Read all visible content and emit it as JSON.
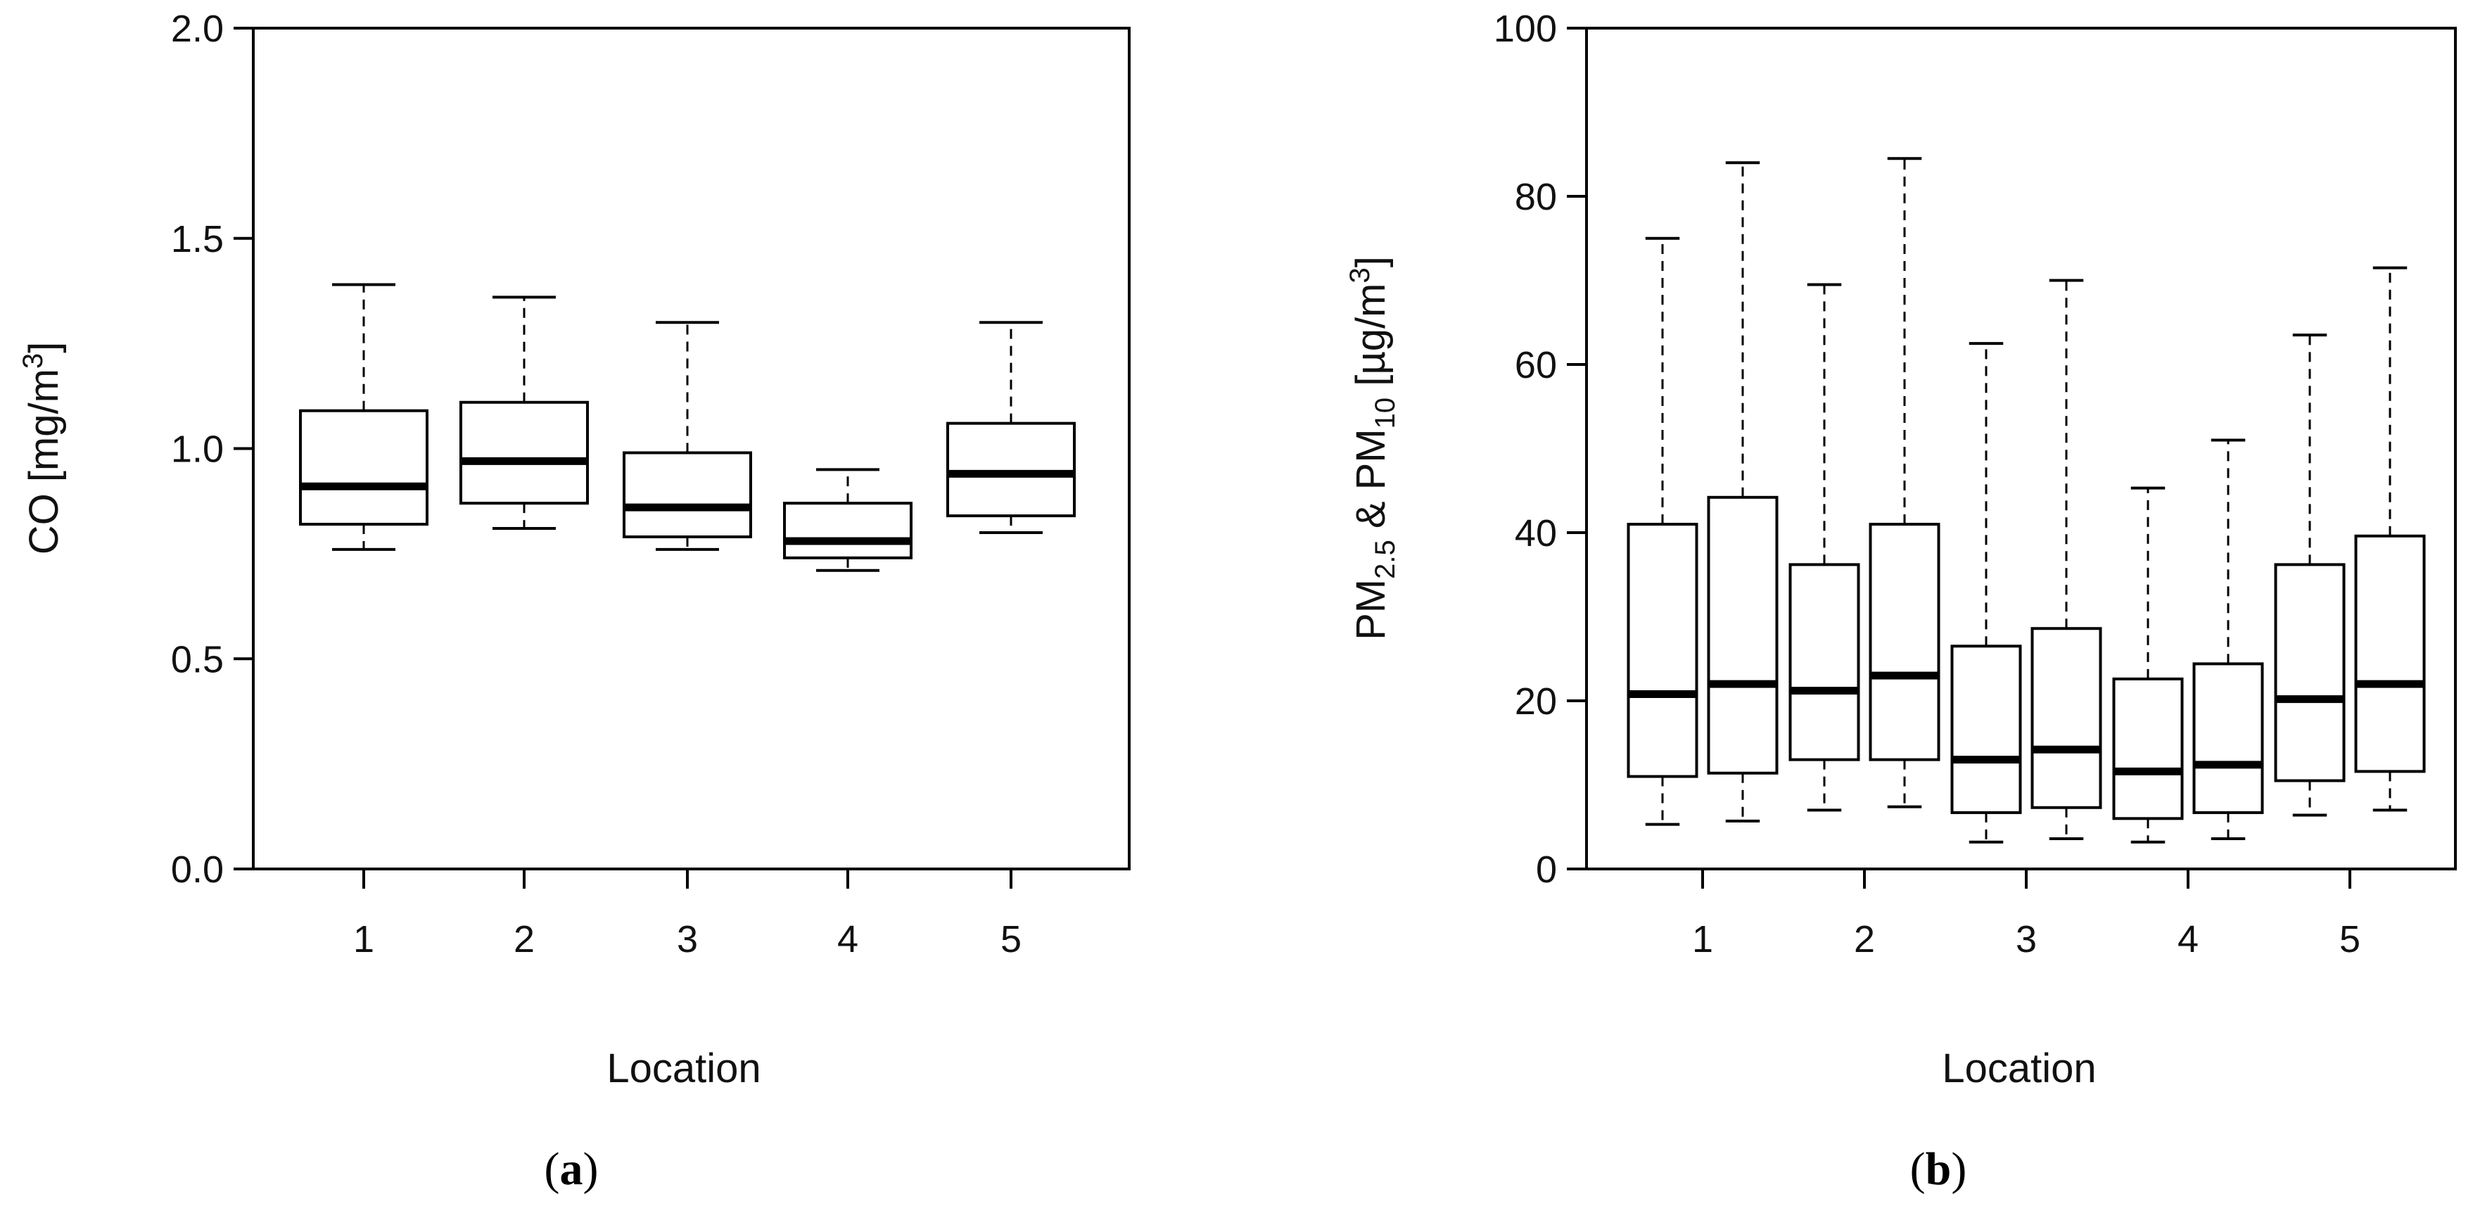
{
  "chart_data": [
    {
      "type": "boxplot",
      "panel_label": "a",
      "xlabel": "Location",
      "ylabel_parts": [
        "CO [mg/m",
        "3",
        "]"
      ],
      "ylim": [
        0,
        2.0
      ],
      "y_ticks": [
        "0.0",
        "0.5",
        "1.0",
        "1.5",
        "2.0"
      ],
      "x_ticks": [
        "1",
        "2",
        "3",
        "4",
        "5"
      ],
      "boxes": [
        {
          "loc": 1,
          "min": 0.76,
          "q1": 0.82,
          "median": 0.91,
          "q3": 1.09,
          "max": 1.39
        },
        {
          "loc": 2,
          "min": 0.81,
          "q1": 0.87,
          "median": 0.97,
          "q3": 1.11,
          "max": 1.36
        },
        {
          "loc": 3,
          "min": 0.76,
          "q1": 0.79,
          "median": 0.86,
          "q3": 0.99,
          "max": 1.3
        },
        {
          "loc": 4,
          "min": 0.71,
          "q1": 0.74,
          "median": 0.78,
          "q3": 0.87,
          "max": 0.95
        },
        {
          "loc": 5,
          "min": 0.8,
          "q1": 0.84,
          "median": 0.94,
          "q3": 1.06,
          "max": 1.3
        }
      ]
    },
    {
      "type": "boxplot",
      "panel_label": "b",
      "xlabel": "Location",
      "ylabel_parts": [
        "PM",
        "2.5",
        " & PM",
        "10",
        " [µg/m",
        "3",
        "]"
      ],
      "ylim": [
        0,
        100
      ],
      "y_ticks": [
        "0",
        "20",
        "40",
        "60",
        "80",
        "100"
      ],
      "x_ticks": [
        "1",
        "2",
        "3",
        "4",
        "5"
      ],
      "boxes": [
        {
          "loc": 1,
          "series": "PM2.5",
          "min": 5.3,
          "q1": 11.0,
          "median": 20.8,
          "q3": 41.0,
          "max": 75.0
        },
        {
          "loc": 1,
          "series": "PM10",
          "min": 5.7,
          "q1": 11.4,
          "median": 22.0,
          "q3": 44.2,
          "max": 84.0
        },
        {
          "loc": 2,
          "series": "PM2.5",
          "min": 7.0,
          "q1": 13.0,
          "median": 21.2,
          "q3": 36.2,
          "max": 69.5
        },
        {
          "loc": 2,
          "series": "PM10",
          "min": 7.4,
          "q1": 13.0,
          "median": 23.0,
          "q3": 41.0,
          "max": 84.5
        },
        {
          "loc": 3,
          "series": "PM2.5",
          "min": 3.2,
          "q1": 6.7,
          "median": 13.0,
          "q3": 26.5,
          "max": 62.5
        },
        {
          "loc": 3,
          "series": "PM10",
          "min": 3.6,
          "q1": 7.3,
          "median": 14.2,
          "q3": 28.6,
          "max": 70.0
        },
        {
          "loc": 4,
          "series": "PM2.5",
          "min": 3.2,
          "q1": 6.0,
          "median": 11.6,
          "q3": 22.6,
          "max": 45.3
        },
        {
          "loc": 4,
          "series": "PM10",
          "min": 3.6,
          "q1": 6.7,
          "median": 12.4,
          "q3": 24.4,
          "max": 51.0
        },
        {
          "loc": 5,
          "series": "PM2.5",
          "min": 6.4,
          "q1": 10.5,
          "median": 20.2,
          "q3": 36.2,
          "max": 63.5
        },
        {
          "loc": 5,
          "series": "PM10",
          "min": 7.0,
          "q1": 11.6,
          "median": 22.0,
          "q3": 39.6,
          "max": 71.5
        }
      ]
    }
  ]
}
